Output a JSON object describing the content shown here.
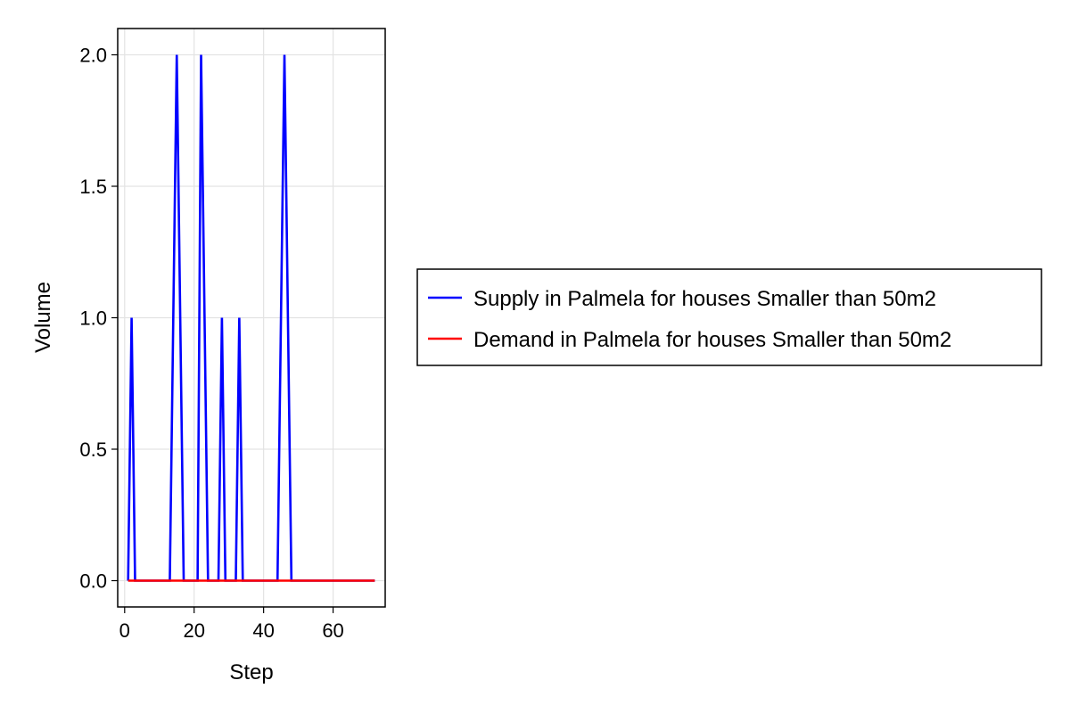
{
  "chart_data": {
    "type": "line",
    "xlabel": "Step",
    "ylabel": "Volume",
    "xlim": [
      -2,
      75
    ],
    "ylim": [
      -0.1,
      2.1
    ],
    "x_ticks": [
      0,
      20,
      40,
      60
    ],
    "x_tick_labels": [
      "0",
      "20",
      "40",
      "60"
    ],
    "y_ticks": [
      0.0,
      0.5,
      1.0,
      1.5,
      2.0
    ],
    "y_tick_labels": [
      "0.0",
      "0.5",
      "1.0",
      "1.5",
      "2.0"
    ],
    "grid": true,
    "legend_position": "right",
    "series": [
      {
        "name": "Supply in Palmela for houses Smaller than 50m2",
        "color": "#0000ff",
        "x": [
          1,
          2,
          3,
          13,
          15,
          17,
          21,
          22,
          24,
          27,
          28,
          29,
          32,
          33,
          34,
          44,
          46,
          48,
          72
        ],
        "y": [
          0,
          1,
          0,
          0,
          2,
          0,
          0,
          2,
          0,
          0,
          1,
          0,
          0,
          1,
          0,
          0,
          2,
          0,
          0
        ]
      },
      {
        "name": "Demand in Palmela for houses Smaller than 50m2",
        "color": "#ff0000",
        "x": [
          1,
          72
        ],
        "y": [
          0,
          0
        ]
      }
    ]
  }
}
